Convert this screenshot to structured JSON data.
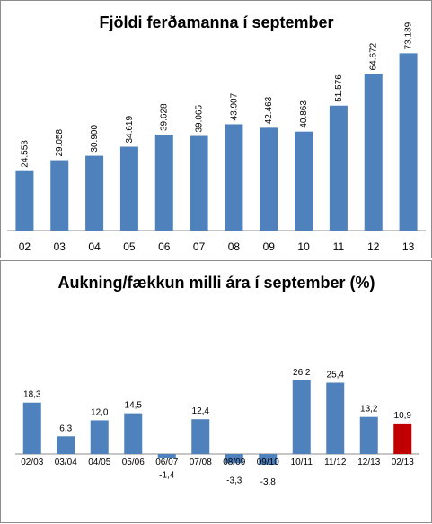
{
  "chart_data": [
    {
      "type": "bar",
      "title": "Fjöldi ferðamanna í september",
      "categories": [
        "02",
        "03",
        "04",
        "05",
        "06",
        "07",
        "08",
        "09",
        "10",
        "11",
        "12",
        "13"
      ],
      "values": [
        24553,
        29058,
        30900,
        34619,
        39628,
        39065,
        43907,
        42463,
        40863,
        51576,
        64672,
        73189
      ],
      "labels": [
        "24.553",
        "29.058",
        "30.900",
        "34.619",
        "39.628",
        "39.065",
        "43.907",
        "42.463",
        "40.863",
        "51.576",
        "64.672",
        "73.189"
      ],
      "ylim": [
        0,
        80000
      ],
      "grid": false,
      "legend": "none",
      "bar_color": "#4f81bd"
    },
    {
      "type": "bar",
      "title": "Aukning/fækkun milli ára í september (%)",
      "categories": [
        "02/03",
        "03/04",
        "04/05",
        "05/06",
        "06/07",
        "07/08",
        "08/09",
        "09/10",
        "10/11",
        "11/12",
        "12/13",
        "02/13"
      ],
      "values": [
        18.3,
        6.3,
        12.0,
        14.5,
        -1.4,
        12.4,
        -3.3,
        -3.8,
        26.2,
        25.4,
        13.2,
        10.9
      ],
      "labels": [
        "18,3",
        "6,3",
        "12,0",
        "14,5",
        "-1,4",
        "12,4",
        "-3,3",
        "-3,8",
        "26,2",
        "25,4",
        "13,2",
        "10,9"
      ],
      "ylim": [
        -4,
        30
      ],
      "grid": false,
      "legend": "none",
      "bar_color": "#4f81bd",
      "highlight_color": "#c00000",
      "highlight_index": 11
    }
  ]
}
